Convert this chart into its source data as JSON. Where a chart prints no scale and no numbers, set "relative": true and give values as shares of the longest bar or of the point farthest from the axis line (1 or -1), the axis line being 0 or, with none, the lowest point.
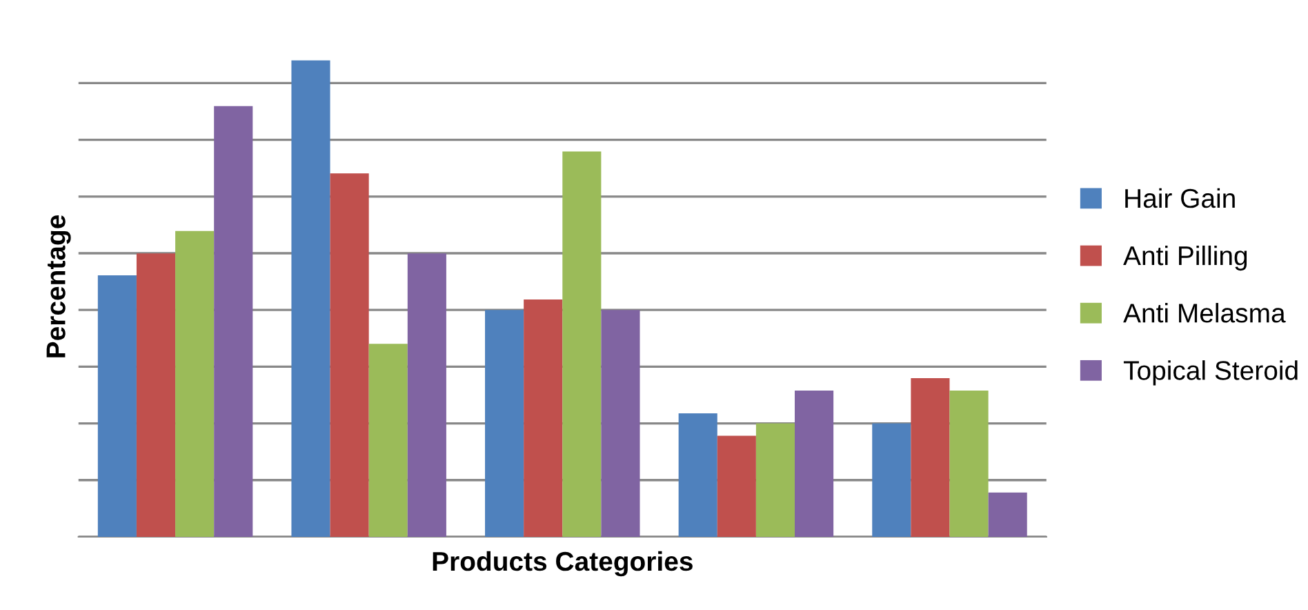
{
  "chart_data": {
    "type": "bar",
    "relative": true,
    "xlabel": "Products Categories",
    "ylabel": "Percentage",
    "categories": [
      null,
      null,
      null,
      null,
      null
    ],
    "series": [
      {
        "name": "Hair Gain",
        "color": "#4f81bd",
        "values": [
          0.549,
          1,
          0.476,
          0.259,
          0.238
        ]
      },
      {
        "name": "Anti Pilling",
        "color": "#c0504d",
        "values": [
          0.595,
          0.763,
          0.498,
          0.212,
          0.333
        ]
      },
      {
        "name": "Anti Melasma",
        "color": "#9bbb59",
        "values": [
          0.642,
          0.405,
          0.809,
          0.238,
          0.307
        ]
      },
      {
        "name": "Topical Steroid",
        "color": "#8064a2",
        "values": [
          0.904,
          0.595,
          0.476,
          0.307,
          0.093
        ]
      }
    ],
    "grid": "y",
    "legend": "right"
  }
}
